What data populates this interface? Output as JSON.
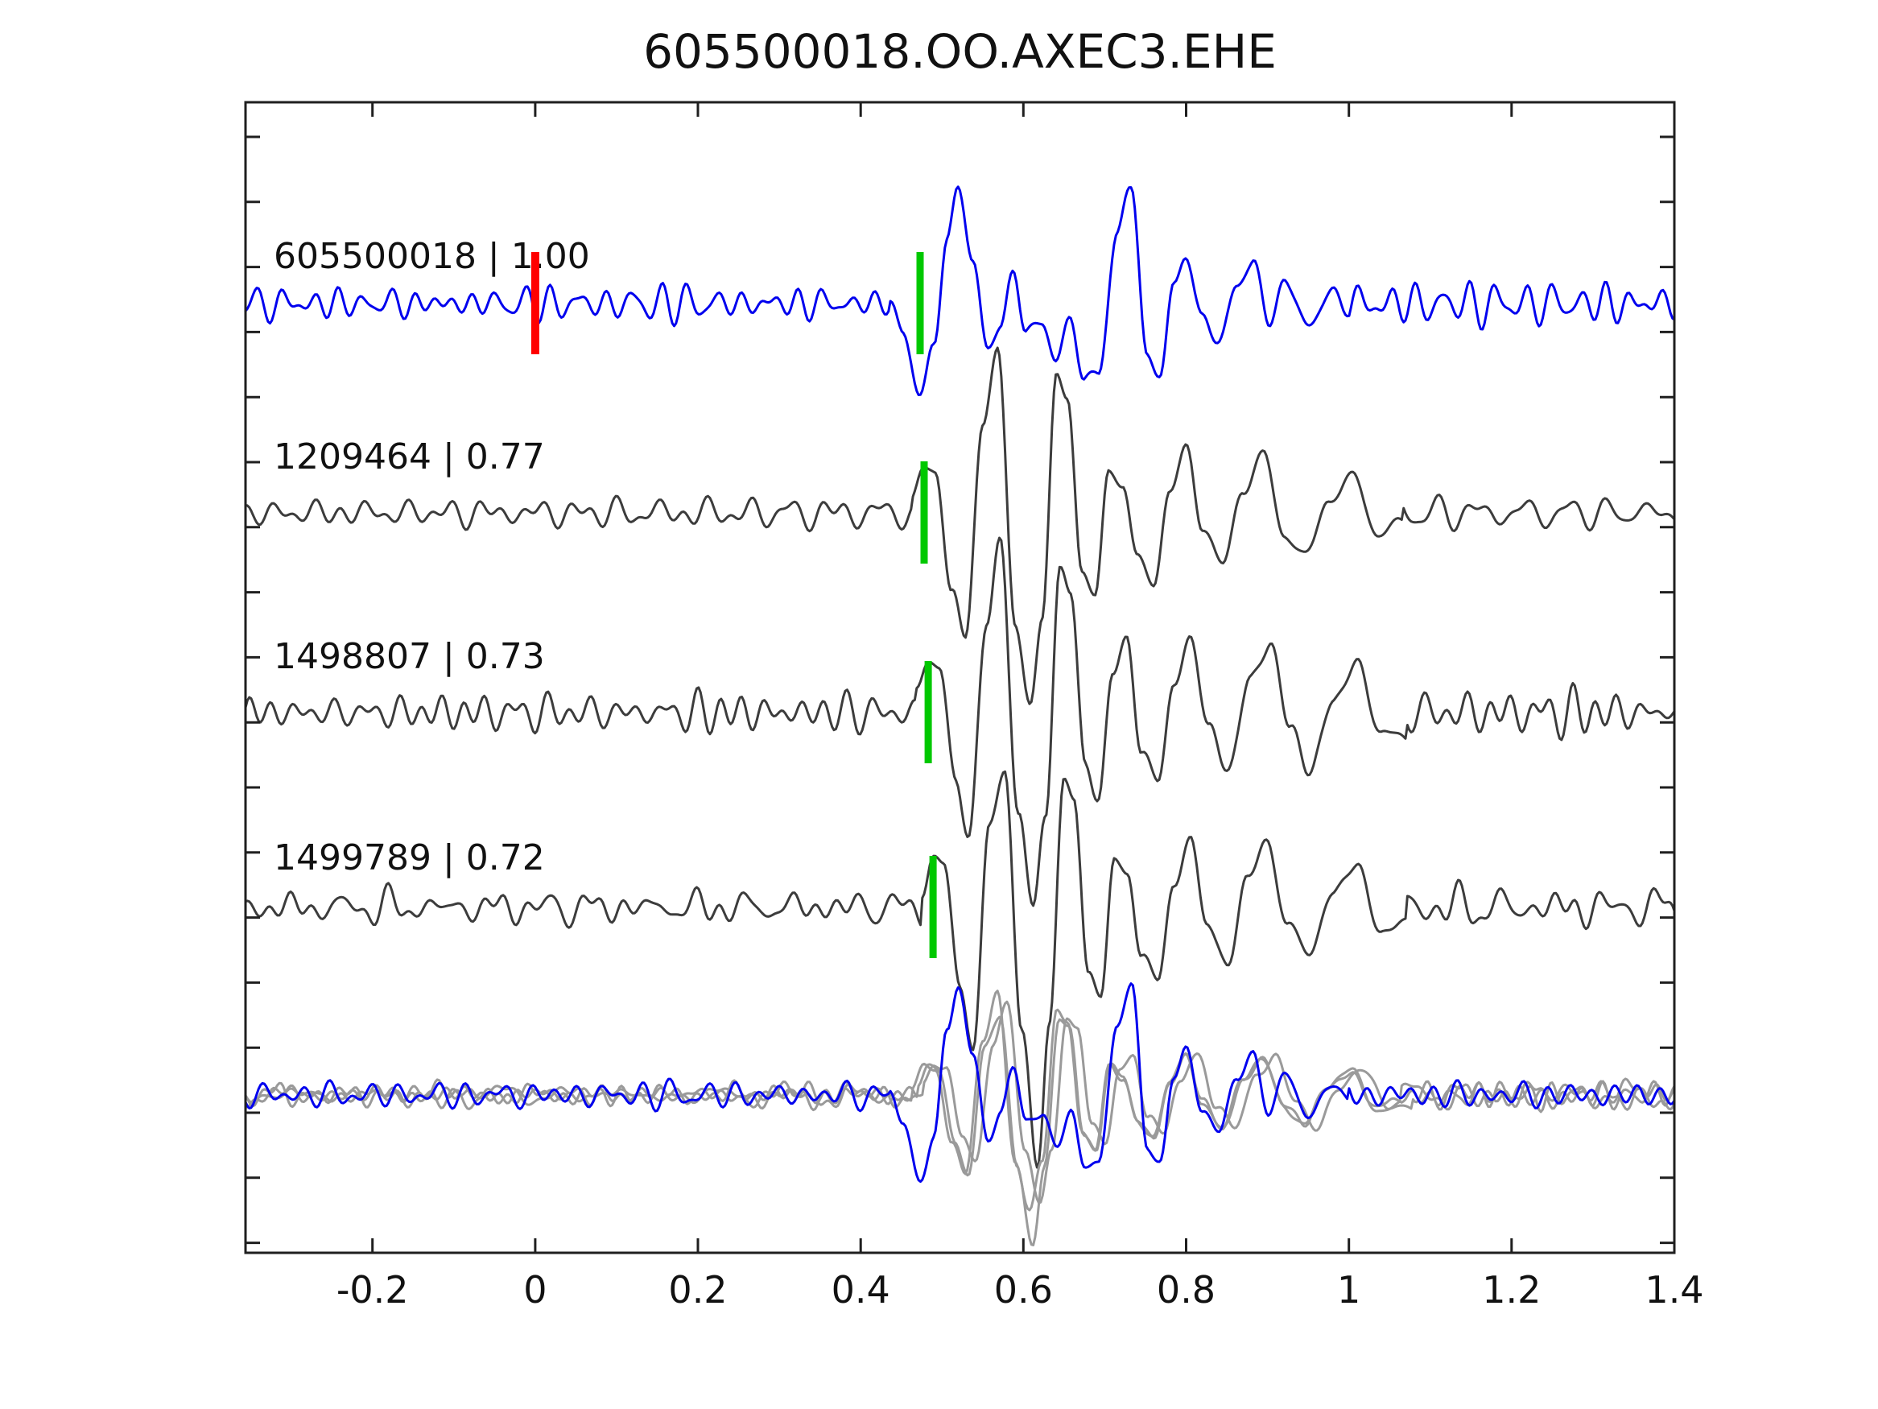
{
  "chart_data": {
    "type": "line",
    "title": "605500018.OO.AXEC3.EHE",
    "xlabel": "",
    "ylabel": "",
    "xlim": [
      -0.356,
      1.4
    ],
    "grid": false,
    "legend": null,
    "x_ticks": [
      {
        "t": -0.2,
        "label": "-0.2"
      },
      {
        "t": 0,
        "label": "0"
      },
      {
        "t": 0.2,
        "label": "0.2"
      },
      {
        "t": 0.4,
        "label": "0.4"
      },
      {
        "t": 0.6,
        "label": "0.6"
      },
      {
        "t": 0.8,
        "label": "0.8"
      },
      {
        "t": 1,
        "label": "1"
      },
      {
        "t": 1.2,
        "label": "1.2"
      },
      {
        "t": 1.4,
        "label": "1.4"
      }
    ],
    "colors": {
      "blue": "#0000ee",
      "dark_gray": "#3c3c3c",
      "light_gray": "#9a9a9a",
      "green": "#00c800",
      "red": "#ff0000",
      "axis": "#1f1f1f"
    },
    "traces": [
      {
        "event_id": "605500018",
        "correlation": "1.00",
        "label_text": "605500018 | 1.00",
        "color_key": "blue",
        "center_y": 377,
        "noise_amp": 17,
        "seed": 11,
        "pick_t": 0.473,
        "pick_color": "green",
        "extra_marker_t": 0.0,
        "extra_marker_color": "red",
        "burst": [
          [
            0.435,
            5
          ],
          [
            0.452,
            -35
          ],
          [
            0.472,
            -113
          ],
          [
            0.49,
            -55
          ],
          [
            0.506,
            85
          ],
          [
            0.52,
            140
          ],
          [
            0.538,
            55
          ],
          [
            0.556,
            -60
          ],
          [
            0.572,
            -22
          ],
          [
            0.588,
            35
          ],
          [
            0.603,
            -32
          ],
          [
            0.623,
            -25
          ],
          [
            0.64,
            -68
          ],
          [
            0.658,
            -22
          ],
          [
            0.675,
            -92
          ],
          [
            0.692,
            -88
          ],
          [
            0.715,
            85
          ],
          [
            0.733,
            150
          ],
          [
            0.752,
            -70
          ],
          [
            0.768,
            -88
          ],
          [
            0.785,
            25
          ],
          [
            0.8,
            58
          ],
          [
            0.82,
            -18
          ],
          [
            0.84,
            -48
          ],
          [
            0.862,
            22
          ],
          [
            0.882,
            52
          ],
          [
            0.902,
            -22
          ],
          [
            0.922,
            28
          ],
          [
            0.95,
            -28
          ],
          [
            0.98,
            16
          ],
          [
            1.0,
            -10
          ]
        ]
      },
      {
        "event_id": "1209464",
        "correlation": "0.77",
        "label_text": "1209464 | 0.77",
        "color_key": "dark_gray",
        "center_y": 637,
        "noise_amp": 16,
        "seed": 22,
        "pick_t": 0.478,
        "pick_color": "green",
        "burst": [
          [
            0.462,
            15
          ],
          [
            0.478,
            55
          ],
          [
            0.492,
            50
          ],
          [
            0.512,
            -95
          ],
          [
            0.528,
            -160
          ],
          [
            0.55,
            110
          ],
          [
            0.568,
            205
          ],
          [
            0.59,
            -140
          ],
          [
            0.608,
            -235
          ],
          [
            0.623,
            -130
          ],
          [
            0.641,
            170
          ],
          [
            0.654,
            145
          ],
          [
            0.672,
            -70
          ],
          [
            0.688,
            -110
          ],
          [
            0.705,
            60
          ],
          [
            0.722,
            30
          ],
          [
            0.74,
            -55
          ],
          [
            0.76,
            -85
          ],
          [
            0.78,
            25
          ],
          [
            0.8,
            80
          ],
          [
            0.82,
            -15
          ],
          [
            0.845,
            -65
          ],
          [
            0.87,
            30
          ],
          [
            0.895,
            72
          ],
          [
            0.92,
            -25
          ],
          [
            0.945,
            -55
          ],
          [
            0.975,
            15
          ],
          [
            1.005,
            45
          ],
          [
            1.035,
            -25
          ],
          [
            1.065,
            -12
          ]
        ]
      },
      {
        "event_id": "1498807",
        "correlation": "0.73",
        "label_text": "1498807 | 0.73",
        "color_key": "dark_gray",
        "center_y": 885,
        "noise_amp": 21,
        "seed": 33,
        "pick_t": 0.483,
        "pick_color": "green",
        "burst": [
          [
            0.468,
            25
          ],
          [
            0.483,
            65
          ],
          [
            0.497,
            58
          ],
          [
            0.517,
            -90
          ],
          [
            0.533,
            -150
          ],
          [
            0.555,
            115
          ],
          [
            0.572,
            210
          ],
          [
            0.594,
            -130
          ],
          [
            0.612,
            -240
          ],
          [
            0.627,
            -125
          ],
          [
            0.645,
            175
          ],
          [
            0.658,
            150
          ],
          [
            0.676,
            -60
          ],
          [
            0.692,
            -115
          ],
          [
            0.71,
            55
          ],
          [
            0.727,
            90
          ],
          [
            0.745,
            -50
          ],
          [
            0.765,
            -80
          ],
          [
            0.785,
            30
          ],
          [
            0.805,
            95
          ],
          [
            0.828,
            -20
          ],
          [
            0.852,
            -70
          ],
          [
            0.878,
            40
          ],
          [
            0.902,
            85
          ],
          [
            0.928,
            -15
          ],
          [
            0.952,
            -75
          ],
          [
            0.98,
            15
          ],
          [
            1.01,
            60
          ],
          [
            1.04,
            -25
          ],
          [
            1.07,
            -30
          ]
        ]
      },
      {
        "event_id": "1499789",
        "correlation": "0.72",
        "label_text": "1499789 | 0.72",
        "color_key": "dark_gray",
        "center_y": 1127,
        "noise_amp": 18,
        "seed": 44,
        "pick_t": 0.489,
        "pick_color": "green",
        "burst": [
          [
            0.475,
            20
          ],
          [
            0.489,
            60
          ],
          [
            0.502,
            55
          ],
          [
            0.522,
            -100
          ],
          [
            0.538,
            -173
          ],
          [
            0.558,
            100
          ],
          [
            0.577,
            167
          ],
          [
            0.598,
            -150
          ],
          [
            0.617,
            -318
          ],
          [
            0.632,
            -150
          ],
          [
            0.65,
            162
          ],
          [
            0.662,
            138
          ],
          [
            0.68,
            -80
          ],
          [
            0.695,
            -118
          ],
          [
            0.712,
            67
          ],
          [
            0.728,
            40
          ],
          [
            0.745,
            -60
          ],
          [
            0.765,
            -90
          ],
          [
            0.785,
            30
          ],
          [
            0.805,
            85
          ],
          [
            0.825,
            -20
          ],
          [
            0.85,
            -70
          ],
          [
            0.875,
            35
          ],
          [
            0.9,
            80
          ],
          [
            0.925,
            -20
          ],
          [
            0.95,
            -60
          ],
          [
            0.98,
            20
          ],
          [
            1.01,
            50
          ],
          [
            1.04,
            -30
          ],
          [
            1.07,
            -18
          ]
        ]
      }
    ],
    "overlay": {
      "center_y": 1360,
      "members": [
        {
          "source": 1,
          "scale": 0.6,
          "dt": 0.0,
          "seed": 55,
          "noise_amp": 13,
          "color_key": "light_gray"
        },
        {
          "source": 2,
          "scale": 0.55,
          "dt": 0.008,
          "seed": 66,
          "noise_amp": 13,
          "color_key": "light_gray"
        },
        {
          "source": 3,
          "scale": 0.58,
          "dt": -0.006,
          "seed": 77,
          "noise_amp": 13,
          "color_key": "light_gray"
        },
        {
          "source": 0,
          "scale": 0.95,
          "dt": 0.0,
          "seed": 88,
          "noise_amp": 13,
          "color_key": "blue"
        }
      ]
    },
    "annotations": {
      "red_marker_meaning": "template time zero on trace 605500018",
      "green_marker_meaning": "pick / detection alignment time on each trace"
    }
  }
}
